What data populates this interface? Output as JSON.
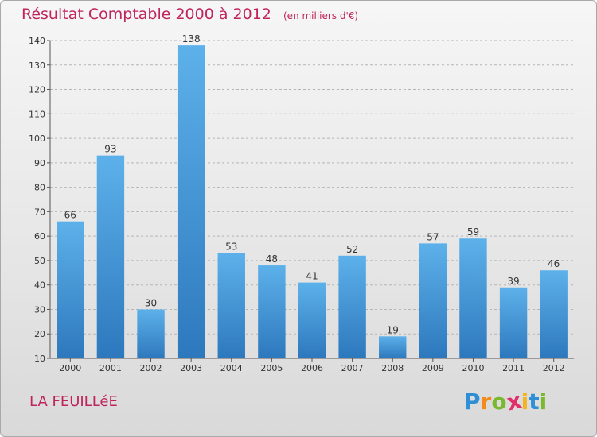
{
  "chart_data": {
    "type": "bar",
    "title": "Résultat Comptable 2000 à 2012",
    "subtitle": "(en milliers d'€)",
    "categories": [
      "2000",
      "2001",
      "2002",
      "2003",
      "2004",
      "2005",
      "2006",
      "2007",
      "2008",
      "2009",
      "2010",
      "2011",
      "2012"
    ],
    "values": [
      66,
      93,
      30,
      138,
      53,
      48,
      41,
      52,
      19,
      57,
      59,
      39,
      46
    ],
    "ylim": [
      10,
      140
    ],
    "yticks": [
      10,
      20,
      30,
      40,
      50,
      60,
      70,
      80,
      90,
      100,
      110,
      120,
      130,
      140
    ],
    "xlabel": "",
    "ylabel": "",
    "grid": true
  },
  "place_name": "LA FEUILLéE",
  "logo": {
    "letters": [
      "P",
      "r",
      "o",
      "x",
      "i",
      "t",
      "i"
    ],
    "colors": [
      "#2e8fd6",
      "#f28a1d",
      "#7ab82e",
      "#e02f6b",
      "#f2b51d",
      "#2e8fd6",
      "#7ab82e"
    ]
  },
  "colors": {
    "title": "#c0245c",
    "bar_light": "#5db1ea",
    "bar_dark": "#2d78bd",
    "grid": "#b5b5b5",
    "axis": "#555555"
  }
}
